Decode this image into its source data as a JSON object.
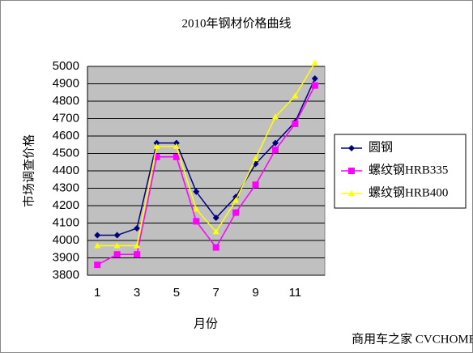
{
  "chart_data": {
    "type": "line",
    "title": "2010年钢材价格曲线",
    "x_label": "月份",
    "y_label": "市场调查价格",
    "categories": [
      "1",
      null,
      "3",
      null,
      "5",
      null,
      "7",
      null,
      "9",
      null,
      "11",
      null
    ],
    "series": [
      {
        "name": "圆钢",
        "color": "#000080",
        "marker": "diamond",
        "values": [
          4030,
          4030,
          4070,
          4560,
          4560,
          4280,
          4130,
          4250,
          4440,
          4560,
          4680,
          4930
        ]
      },
      {
        "name": "螺纹钢HRB335",
        "color": "#ff00ff",
        "marker": "square",
        "values": [
          3860,
          3920,
          3920,
          4480,
          4480,
          4110,
          3960,
          4160,
          4320,
          4520,
          4670,
          4890
        ]
      },
      {
        "name": "螺纹钢HRB400",
        "color": "#ffff00",
        "marker": "triangle",
        "values": [
          3970,
          3970,
          3970,
          4540,
          4540,
          4180,
          4050,
          4230,
          4470,
          4710,
          4830,
          5020
        ]
      }
    ],
    "ylim": [
      3800,
      5000
    ],
    "yticks": [
      3800,
      3900,
      4000,
      4100,
      4200,
      4300,
      4400,
      4500,
      4600,
      4700,
      4800,
      4900,
      5000
    ],
    "grid": true,
    "plot_background": "#c0c0c0",
    "legend": "right",
    "watermark": "商用车之家 CVCHOME.COM"
  }
}
